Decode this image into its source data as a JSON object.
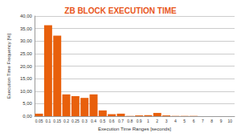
{
  "chart_data": {
    "type": "bar",
    "title": "ZB BLOCK EXECUTION TIME",
    "x_label": "Execution Time Ranges [seconds]",
    "y_label": "Execution Time Frequency [%]",
    "categories": [
      "0.05",
      "0.1",
      "0.15",
      "0.2",
      "0.25",
      "0.3",
      "0.4",
      "0.5",
      "0.6",
      "0.7",
      "0.8",
      "0.9",
      "1",
      "2",
      "3",
      "4",
      "5",
      "6",
      "7",
      "8",
      "9",
      "10"
    ],
    "values": [
      1.0,
      36.3,
      32.2,
      8.7,
      8.0,
      7.3,
      8.7,
      2.3,
      0.8,
      1.0,
      0.1,
      0.3,
      0.4,
      1.3,
      0.3,
      0.1,
      0.1,
      0.1,
      0,
      0,
      0,
      0
    ],
    "color": "#e8600c",
    "ylim": [
      0,
      40
    ],
    "yticks": [
      {
        "value": 0,
        "label": "0,00"
      },
      {
        "value": 5,
        "label": "5,00"
      },
      {
        "value": 10,
        "label": "10,00"
      },
      {
        "value": 15,
        "label": "15,00"
      },
      {
        "value": 20,
        "label": "20,00"
      },
      {
        "value": 25,
        "label": "25,00"
      },
      {
        "value": 30,
        "label": "30,00"
      },
      {
        "value": 35,
        "label": "35,00"
      },
      {
        "value": 40,
        "label": "40,00"
      }
    ],
    "grid": true
  }
}
